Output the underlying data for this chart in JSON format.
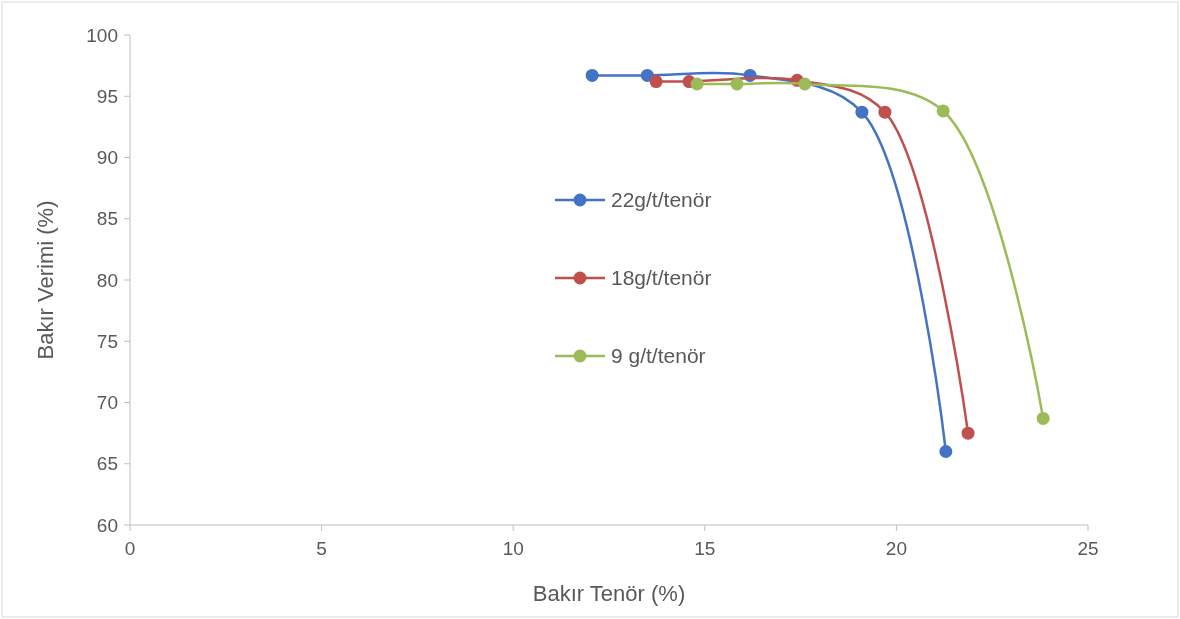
{
  "chart_data": {
    "type": "line",
    "xlabel": "Bakır Tenör (%)",
    "ylabel": "Bakır Verimi (%)",
    "xlim": [
      0,
      25
    ],
    "xticks": [
      0,
      5,
      10,
      15,
      20,
      25
    ],
    "ylim": [
      60,
      100
    ],
    "yticks": [
      60,
      65,
      70,
      75,
      80,
      85,
      90,
      95,
      100
    ],
    "grid": false,
    "legend": "center",
    "marker": "circle",
    "line_style": "solid",
    "series": [
      {
        "name": "22g/t/tenör",
        "color": "#4472c4",
        "x": [
          12.06,
          13.5,
          16.18,
          19.1,
          21.29
        ],
        "values": [
          96.7,
          96.7,
          96.7,
          93.7,
          66.0
        ]
      },
      {
        "name": "18g/t/tenör",
        "color": "#c0504d",
        "x": [
          13.73,
          14.59,
          17.41,
          19.7,
          21.87
        ],
        "values": [
          96.2,
          96.2,
          96.3,
          93.7,
          67.5
        ]
      },
      {
        "name": "9 g/t/tenör",
        "color": "#9bbb59",
        "x": [
          14.8,
          15.84,
          17.61,
          21.22,
          23.83
        ],
        "values": [
          96.0,
          96.0,
          96.0,
          93.8,
          68.7
        ]
      }
    ]
  }
}
